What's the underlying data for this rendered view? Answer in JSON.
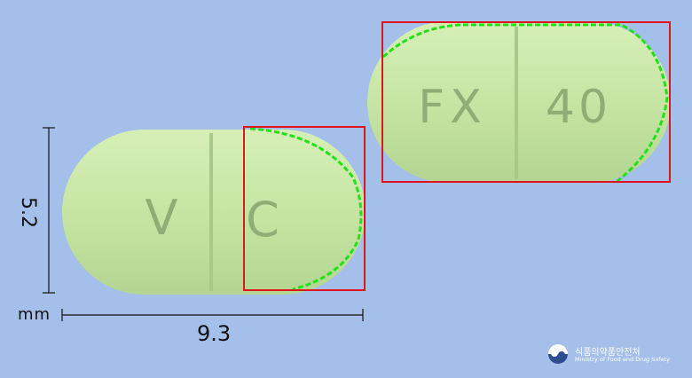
{
  "pill": {
    "front_imprint_left": "V",
    "front_imprint_right": "C",
    "back_imprint_left": "FX",
    "back_imprint_right": "40",
    "color": "#c8e6a6"
  },
  "dimensions": {
    "height_value": "5.2",
    "width_value": "9.3",
    "unit": "mm"
  },
  "logo": {
    "korean_name": "식품의약품안전처",
    "english_name": "Ministry of Food and Drug Safety"
  },
  "colors": {
    "background": "#a4bfe9",
    "highlight_box": "#e0141c",
    "contour": "#22e01a"
  }
}
